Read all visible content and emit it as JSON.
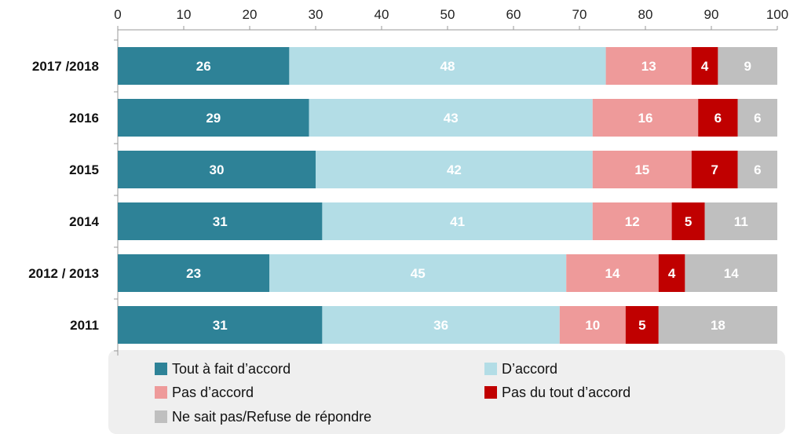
{
  "chart_data": {
    "type": "bar",
    "orientation": "horizontal",
    "stacked": true,
    "xlim": [
      0,
      100
    ],
    "xticks": [
      "0",
      "10",
      "20",
      "30",
      "40",
      "50",
      "60",
      "70",
      "80",
      "90",
      "100"
    ],
    "x_axis_position": "top",
    "grid": false,
    "legend_position": "bottom",
    "categories": [
      "2017 /2018",
      "2016",
      "2015",
      "2014",
      "2012 / 2013",
      "2011"
    ],
    "series": [
      {
        "name": "Tout à fait d’accord",
        "color": "#2e8297",
        "values": [
          26,
          29,
          30,
          31,
          23,
          31
        ]
      },
      {
        "name": "D’accord",
        "color": "#b3dde6",
        "values": [
          48,
          43,
          42,
          41,
          45,
          36
        ]
      },
      {
        "name": "Pas d’accord",
        "color": "#ee9a9a",
        "values": [
          13,
          16,
          15,
          12,
          14,
          10
        ]
      },
      {
        "name": "Pas du tout d’accord",
        "color": "#c00000",
        "values": [
          4,
          6,
          7,
          5,
          4,
          5
        ]
      },
      {
        "name": "Ne sait pas/Refuse de répondre",
        "color": "#bfbfbf",
        "values": [
          9,
          6,
          6,
          11,
          14,
          18
        ]
      }
    ]
  }
}
